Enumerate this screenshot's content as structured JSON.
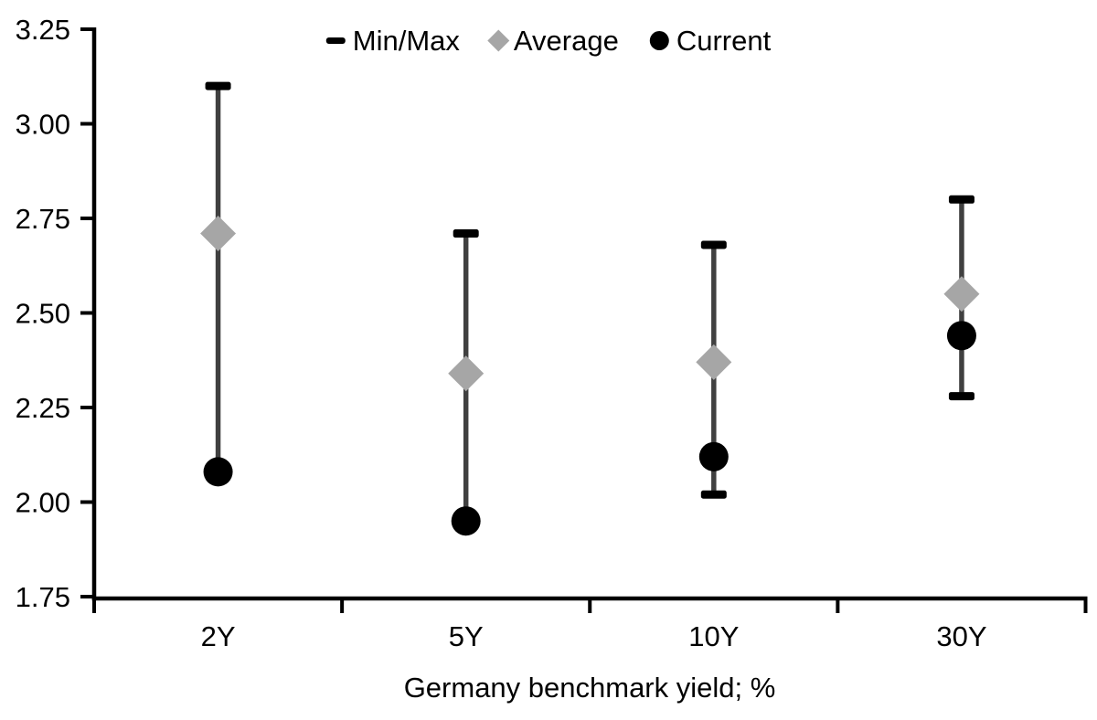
{
  "chart_data": {
    "type": "range-dot",
    "title": "",
    "xlabel": "Germany benchmark yield; %",
    "ylabel": "",
    "categories": [
      "2Y",
      "5Y",
      "10Y",
      "30Y"
    ],
    "ylim": [
      1.75,
      3.25
    ],
    "yticks": [
      1.75,
      2.0,
      2.25,
      2.5,
      2.75,
      3.0,
      3.25
    ],
    "ytick_labels": [
      "1.75",
      "2.00",
      "2.25",
      "2.50",
      "2.75",
      "3.00",
      "3.25"
    ],
    "grid": false,
    "legend_position": "top-center",
    "legend": [
      {
        "label": "Min/Max",
        "marker": "dash"
      },
      {
        "label": "Average",
        "marker": "diamond"
      },
      {
        "label": "Current",
        "marker": "circle"
      }
    ],
    "series": [
      {
        "name": "Max",
        "role": "max",
        "values": [
          3.1,
          2.71,
          2.68,
          2.8
        ]
      },
      {
        "name": "Min",
        "role": "min",
        "values": [
          2.08,
          1.95,
          2.02,
          2.28
        ]
      },
      {
        "name": "Average",
        "role": "average",
        "values": [
          2.71,
          2.34,
          2.37,
          2.55
        ]
      },
      {
        "name": "Current",
        "role": "current",
        "values": [
          2.08,
          1.95,
          2.12,
          2.44
        ]
      }
    ]
  },
  "colors": {
    "background": "#ffffff",
    "axis": "#000000",
    "text": "#000000",
    "whisker_line": "#404040",
    "minmax_cap": "#000000",
    "average_marker": "#a6a6a6",
    "current_marker": "#000000"
  }
}
